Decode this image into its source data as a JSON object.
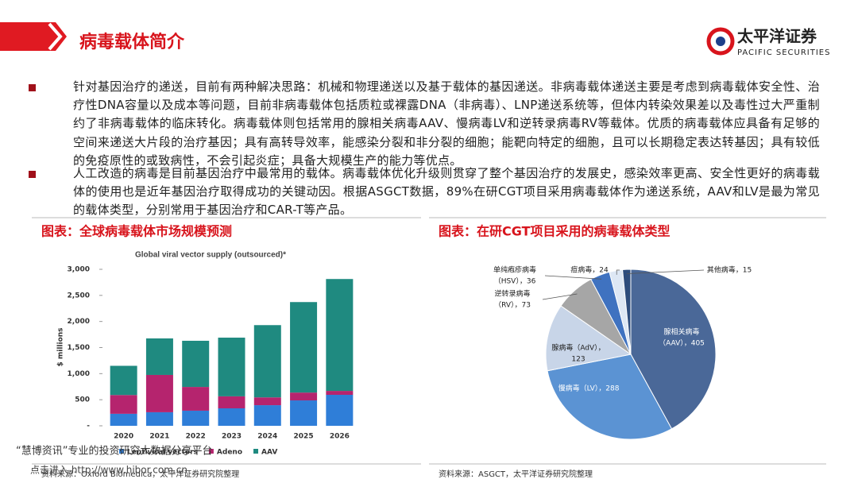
{
  "header": {
    "title": "病毒载体简介",
    "logo_cn": "太平洋证券",
    "logo_en": "PACIFIC SECURITIES"
  },
  "bullets": [
    "针对基因治疗的递送，目前有两种解决思路：机械和物理递送以及基于载体的基因递送。非病毒载体递送主要是考虑到病毒载体安全性、治疗性DNA容量以及成本等问题，目前非病毒载体包括质粒或裸露DNA（非病毒）、LNP递送系统等，但体内转染效果差以及毒性过大严重制约了非病毒载体的临床转化。病毒载体则包括常用的腺相关病毒AAV、慢病毒LV和逆转录病毒RV等载体。优质的病毒载体应具备有足够的空间来递送大片段的治疗基因；具有高转导效率，能感染分裂和非分裂的细胞；能靶向特定的细胞，且可以长期稳定表达转基因；具有较低的免疫原性的或致病性，不会引起炎症；具备大规模生产的能力等优点。",
    "人工改造的病毒是目前基因治疗中最常用的载体。病毒载体优化升级则贯穿了整个基因治疗的发展史，感染效率更高、安全性更好的病毒载体的使用也是近年基因治疗取得成功的关键动因。根据ASGCT数据，89%在研CGT项目采用病毒载体作为递送系统，AAV和LV是最为常见的载体类型，分别常用于基因治疗和CAR-T等产品。"
  ],
  "chart_data": [
    {
      "type": "bar",
      "stacked": true,
      "caption": "图表：全球病毒载体市场规模预测",
      "title": "Global viral vector supply (outsourced)*",
      "y_label": "$ millions",
      "categories": [
        "2020",
        "2021",
        "2022",
        "2023",
        "2024",
        "2025",
        "2026"
      ],
      "series": [
        {
          "name": "Lentiviral vectors",
          "color": "#2f7ed8",
          "values": [
            230,
            260,
            290,
            335,
            395,
            487,
            594
          ]
        },
        {
          "name": "Adeno",
          "color": "#b5246e",
          "values": [
            360,
            715,
            455,
            230,
            150,
            150,
            75
          ]
        },
        {
          "name": "AAV",
          "color": "#1f8a80",
          "values": [
            560,
            700,
            885,
            1125,
            1385,
            1735,
            2145
          ]
        }
      ],
      "ylim": [
        0,
        3000
      ],
      "yticks": [
        {
          "value": 0,
          "label": "-"
        },
        500,
        {
          "value": 1000,
          "label": "1,000"
        },
        {
          "value": 1500,
          "label": "1,500"
        },
        {
          "value": 2000,
          "label": "2,000"
        },
        {
          "value": 2500,
          "label": "2,500"
        },
        {
          "value": 3000,
          "label": "3,000"
        }
      ],
      "legend": "bottom",
      "source": "资料来源：Oxford Biomedica，太平洋证券研究院整理"
    },
    {
      "type": "pie",
      "caption": "图表：在研CGT项目采用的病毒载体类型",
      "labels": [
        [
          "腺相关病毒",
          "（AAV），405"
        ],
        [
          "慢病毒（LV），288"
        ],
        [
          "腺病毒（AdV），",
          "123"
        ],
        [
          "逆转录病毒",
          "（RV），73"
        ],
        [
          "单纯疱疹病毒",
          "（HSV），36"
        ],
        [
          "痘病毒，24"
        ],
        [
          "其他病毒，15"
        ]
      ],
      "values": [
        405,
        288,
        123,
        73,
        36,
        24,
        15
      ],
      "colors": [
        "#4a6898",
        "#5b93d3",
        "#c8d5e8",
        "#a6a6a6",
        "#3f72c0",
        "#dde7f4",
        "#2d4c7c"
      ],
      "source": "资料来源：ASGCT，太平洋证券研究院整理"
    }
  ],
  "watermark": {
    "line1": "“慧博资讯”专业的投资研究大数据分享平台",
    "line2": "点击进入 http://www.hibor.com.cn"
  }
}
